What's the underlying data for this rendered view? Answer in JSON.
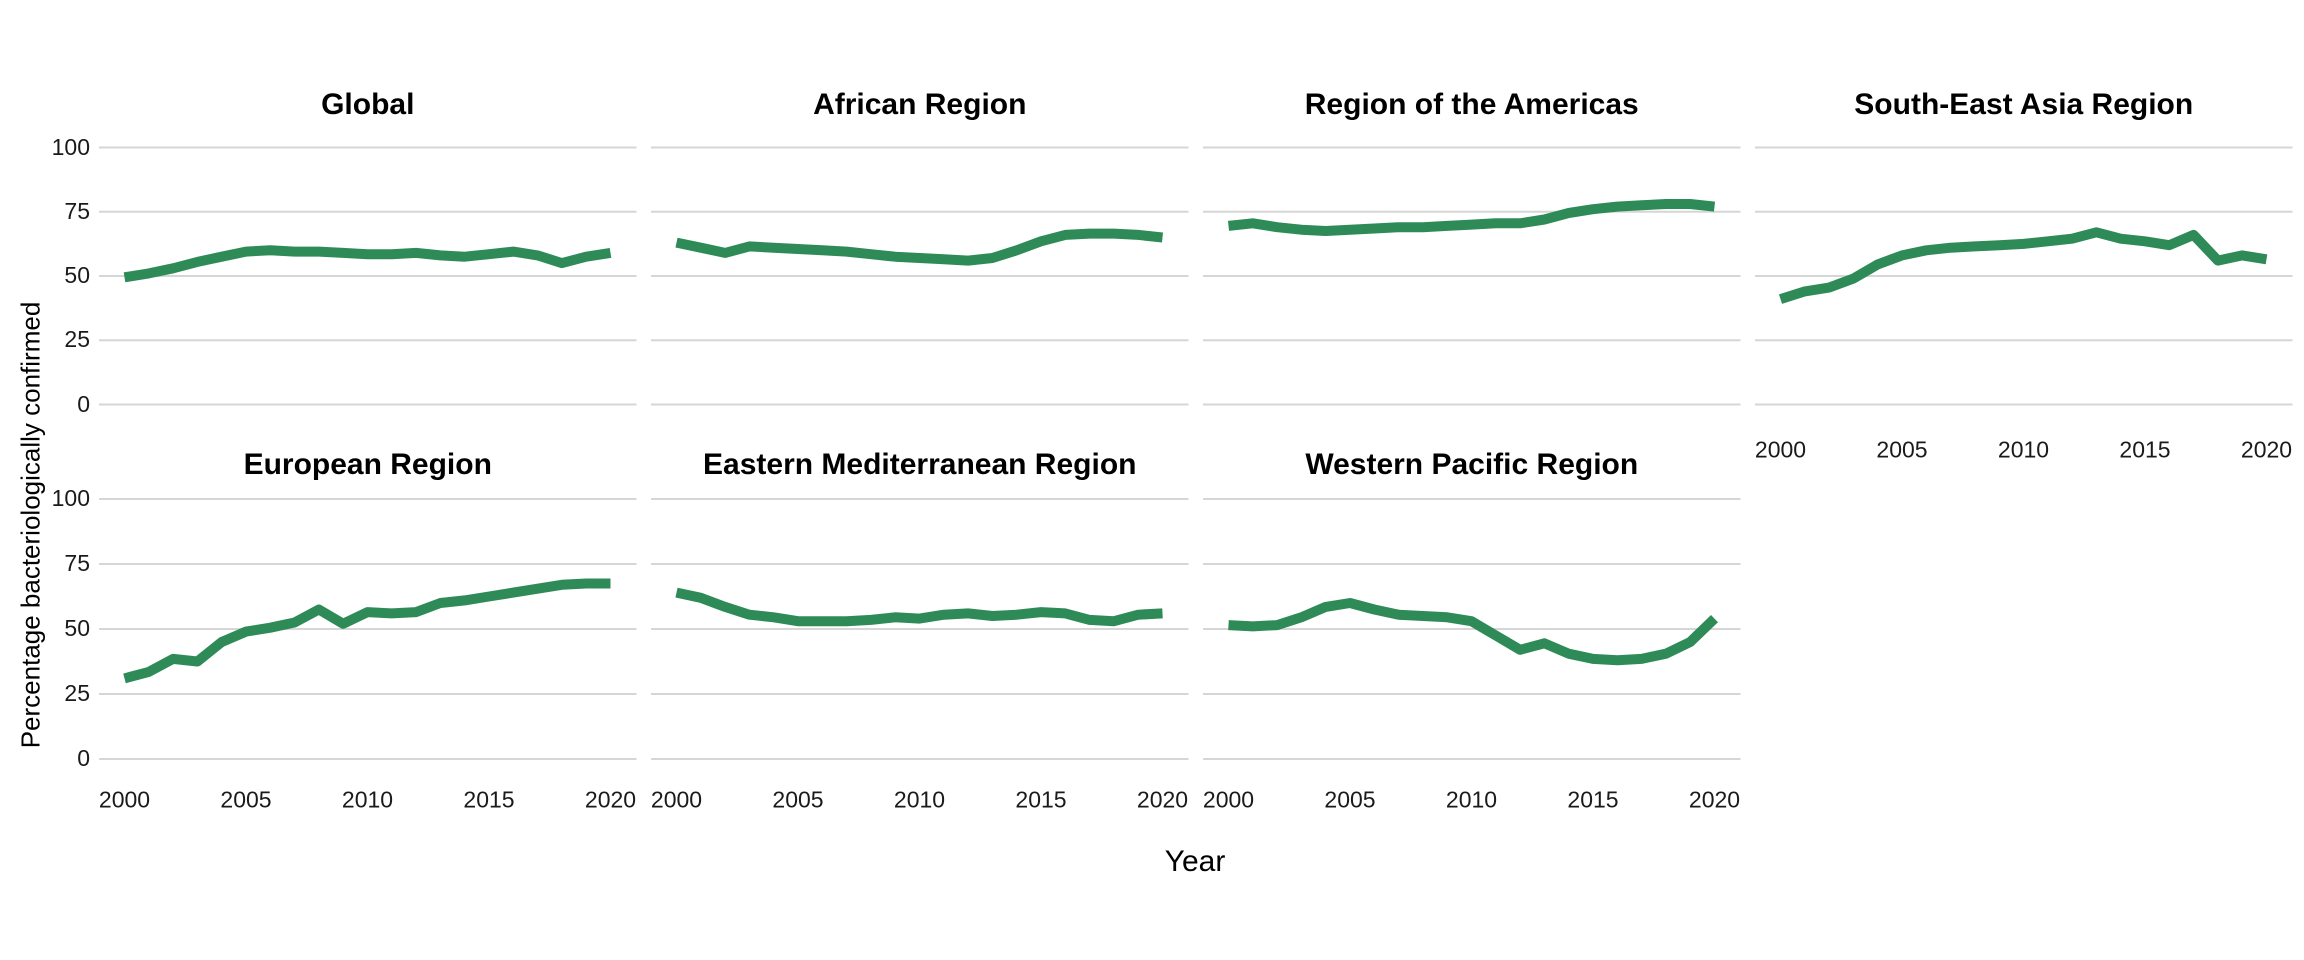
{
  "chart": {
    "y_axis_title": "Percentage bacteriologically confirmed",
    "x_axis_title": "Year",
    "line_color": "#2E8B57",
    "grid_color": "#D6D6D6",
    "y_ticks": [
      100,
      75,
      50,
      25,
      0
    ],
    "y_tick_labels": [
      "100",
      "75",
      "50",
      "25",
      "0"
    ],
    "x_tick_years": [
      2000,
      2005,
      2010,
      2015,
      2020
    ],
    "x_tick_labels": [
      "2000",
      "2005",
      "2010",
      "2015",
      "2020"
    ]
  },
  "chart_data": {
    "type": "line",
    "title": "",
    "xlabel": "Year",
    "ylabel": "Percentage bacteriologically confirmed",
    "ylim": [
      0,
      100
    ],
    "grid": "major-horizontal",
    "legend": "none",
    "x": [
      2000,
      2001,
      2002,
      2003,
      2004,
      2005,
      2006,
      2007,
      2008,
      2009,
      2010,
      2011,
      2012,
      2013,
      2014,
      2015,
      2016,
      2017,
      2018,
      2019,
      2020
    ],
    "facets": [
      {
        "title": "Global",
        "values": [
          49.5,
          51,
          53,
          55.5,
          57.5,
          59.5,
          60,
          59.5,
          59.5,
          59,
          58.5,
          58.5,
          59,
          58,
          57.5,
          58.5,
          59.5,
          58,
          55,
          57.5,
          59
        ]
      },
      {
        "title": "African Region",
        "values": [
          63,
          61,
          59,
          61.5,
          61,
          60.5,
          60,
          59.5,
          58.5,
          57.5,
          57,
          56.5,
          56,
          57,
          60,
          63.5,
          66,
          66.5,
          66.5,
          66,
          65
        ]
      },
      {
        "title": "Region of the Americas",
        "values": [
          69.5,
          70.5,
          69,
          68,
          67.5,
          68,
          68.5,
          69,
          69,
          69.5,
          70,
          70.5,
          70.5,
          72,
          74.5,
          76,
          77,
          77.5,
          78,
          78,
          77
        ]
      },
      {
        "title": "South-East Asia Region",
        "values": [
          41,
          44,
          45.5,
          49,
          54.5,
          58,
          60,
          61,
          61.5,
          62,
          62.5,
          63.5,
          64.5,
          67,
          64.5,
          63.5,
          62,
          66,
          56,
          58,
          56.5
        ]
      },
      {
        "title": "European Region",
        "values": [
          31,
          33.5,
          38.5,
          37.5,
          45,
          49,
          50.5,
          52.5,
          57.5,
          52,
          56.5,
          56,
          56.5,
          60,
          61,
          62.5,
          64,
          65.5,
          67,
          67.5,
          67.5
        ]
      },
      {
        "title": "Eastern Mediterranean Region",
        "values": [
          64,
          62,
          58.5,
          55.5,
          54.5,
          53,
          53,
          53,
          53.5,
          54.5,
          54,
          55.5,
          56,
          55,
          55.5,
          56.5,
          56,
          53.5,
          53,
          55.5,
          56
        ]
      },
      {
        "title": "Western Pacific Region",
        "values": [
          51.5,
          51,
          51.5,
          54.5,
          58.5,
          60,
          57.5,
          55.5,
          55,
          54.5,
          53,
          47.5,
          42,
          44.5,
          40.5,
          38.5,
          38,
          38.5,
          40.5,
          45,
          54
        ]
      }
    ]
  }
}
